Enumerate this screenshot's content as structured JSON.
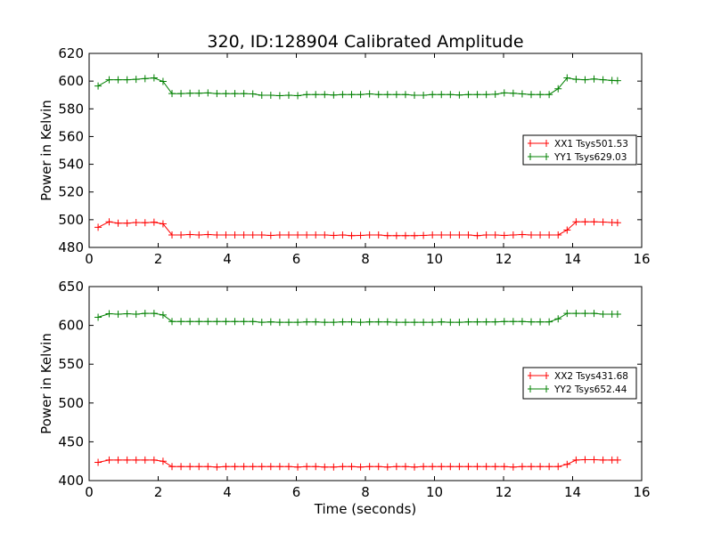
{
  "figure": {
    "title": "320, ID:128904 Calibrated Amplitude"
  },
  "chart_data": [
    {
      "type": "line",
      "xlabel": "",
      "ylabel": "Power in Kelvin",
      "xlim": [
        0,
        16
      ],
      "ylim": [
        480,
        620
      ],
      "xticks": [
        "0",
        "2",
        "4",
        "6",
        "8",
        "10",
        "12",
        "14",
        "16"
      ],
      "yticks": [
        "480",
        "500",
        "520",
        "540",
        "560",
        "580",
        "600",
        "620"
      ],
      "grid": false,
      "legend_position": "center-right",
      "x": [
        0.26,
        0.58,
        0.84,
        1.1,
        1.36,
        1.62,
        1.88,
        2.14,
        2.4,
        2.66,
        2.92,
        3.18,
        3.44,
        3.7,
        3.96,
        4.22,
        4.48,
        4.74,
        5.0,
        5.26,
        5.52,
        5.78,
        6.04,
        6.3,
        6.56,
        6.82,
        7.08,
        7.34,
        7.6,
        7.86,
        8.12,
        8.38,
        8.64,
        8.9,
        9.16,
        9.42,
        9.68,
        9.94,
        10.2,
        10.46,
        10.72,
        10.98,
        11.24,
        11.5,
        11.76,
        12.02,
        12.28,
        12.54,
        12.8,
        13.06,
        13.32,
        13.58,
        13.84,
        14.1,
        14.36,
        14.62,
        14.88,
        15.14,
        15.3
      ],
      "series": [
        {
          "name": "XX1 Tsys501.53",
          "color": "#ff0000",
          "values": [
            494.5,
            498.5,
            497.5,
            497.5,
            498,
            497.8,
            498.2,
            497,
            489,
            489,
            489.3,
            489,
            489.3,
            489,
            489,
            489,
            489,
            489,
            489,
            488.7,
            489,
            489,
            489,
            489,
            489,
            489,
            488.7,
            489,
            488.5,
            488.7,
            489,
            489,
            488.5,
            488.5,
            488.5,
            488.5,
            488.7,
            489,
            489,
            489,
            489,
            489,
            488.5,
            489,
            489,
            488.7,
            489,
            489.3,
            489,
            489,
            489,
            489,
            492.5,
            498.5,
            498.5,
            498.5,
            498.3,
            498,
            497.8
          ]
        },
        {
          "name": "YY1 Tsys629.03",
          "color": "#008000",
          "values": [
            596.5,
            601,
            601,
            601,
            601.3,
            601.8,
            602.3,
            599.8,
            591,
            591,
            591.3,
            591.3,
            591.5,
            591,
            591,
            591,
            591,
            590.8,
            589.8,
            589.8,
            589.5,
            589.8,
            589.5,
            590.3,
            590.3,
            590.3,
            590,
            590.3,
            590.3,
            590.3,
            590.8,
            590.3,
            590.3,
            590.3,
            590.3,
            589.8,
            589.8,
            590.3,
            590.3,
            590.3,
            590,
            590.3,
            590.3,
            590.3,
            590.5,
            591.5,
            591.3,
            590.8,
            590.3,
            590.3,
            590.3,
            594.5,
            602.3,
            601.3,
            601,
            601.5,
            601,
            600.5,
            600.3
          ]
        }
      ]
    },
    {
      "type": "line",
      "xlabel": "Time (seconds)",
      "ylabel": "Power in Kelvin",
      "xlim": [
        0,
        16
      ],
      "ylim": [
        400,
        650
      ],
      "xticks": [
        "0",
        "2",
        "4",
        "6",
        "8",
        "10",
        "12",
        "14",
        "16"
      ],
      "yticks": [
        "400",
        "450",
        "500",
        "550",
        "600",
        "650"
      ],
      "grid": false,
      "legend_position": "center-right",
      "x": [
        0.26,
        0.58,
        0.84,
        1.1,
        1.36,
        1.62,
        1.88,
        2.14,
        2.4,
        2.66,
        2.92,
        3.18,
        3.44,
        3.7,
        3.96,
        4.22,
        4.48,
        4.74,
        5.0,
        5.26,
        5.52,
        5.78,
        6.04,
        6.3,
        6.56,
        6.82,
        7.08,
        7.34,
        7.6,
        7.86,
        8.12,
        8.38,
        8.64,
        8.9,
        9.16,
        9.42,
        9.68,
        9.94,
        10.2,
        10.46,
        10.72,
        10.98,
        11.24,
        11.5,
        11.76,
        12.02,
        12.28,
        12.54,
        12.8,
        13.06,
        13.32,
        13.58,
        13.84,
        14.1,
        14.36,
        14.62,
        14.88,
        15.14,
        15.3
      ],
      "series": [
        {
          "name": "XX2 Tsys431.68",
          "color": "#ff0000",
          "values": [
            423.5,
            426.5,
            426.5,
            426.5,
            426.5,
            426.5,
            426.5,
            425,
            418,
            418,
            418,
            418,
            418,
            417.5,
            418,
            418,
            418,
            418,
            418,
            418,
            418,
            418,
            417.5,
            418,
            418,
            417.5,
            417.5,
            418,
            418,
            417.5,
            418,
            418,
            417.5,
            418,
            418,
            417.5,
            418,
            418,
            418,
            418,
            418,
            418,
            418,
            418,
            418,
            418,
            417.5,
            418,
            418,
            418,
            418,
            418,
            421,
            426.5,
            427,
            427,
            426.5,
            426.5,
            426.5
          ]
        },
        {
          "name": "YY2 Tsys652.44",
          "color": "#008000",
          "values": [
            610.5,
            615,
            614.5,
            615,
            614.5,
            615.5,
            615.5,
            613.5,
            605,
            605,
            605,
            605,
            605,
            605,
            605,
            605,
            605,
            605,
            604,
            604.5,
            604,
            604,
            604,
            604.5,
            604.5,
            604,
            604,
            604.5,
            604.5,
            604,
            604.5,
            604.5,
            604.5,
            604,
            604,
            604,
            604,
            604,
            604.5,
            604,
            604,
            604.5,
            604.5,
            604.5,
            604.5,
            605,
            605,
            605,
            604.5,
            604.5,
            604.5,
            608.5,
            615.5,
            615.5,
            615.5,
            615.5,
            614.5,
            614.5,
            614.5
          ]
        }
      ]
    }
  ]
}
